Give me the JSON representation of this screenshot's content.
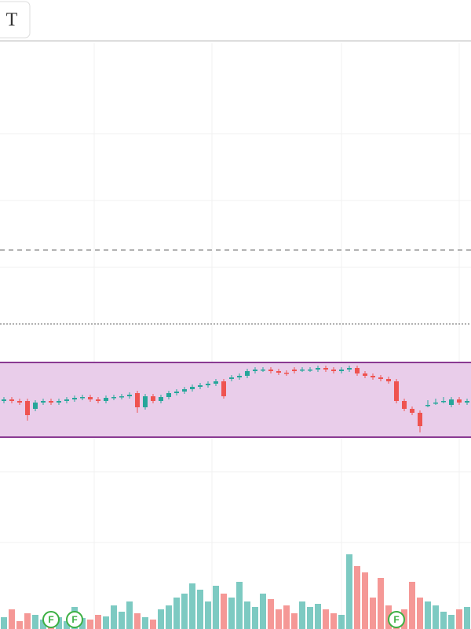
{
  "toolbar": {
    "icon": "T"
  },
  "chart_data": {
    "type": "candlestick",
    "categories": [
      null,
      null,
      null,
      null,
      null,
      null,
      null,
      null,
      null,
      null,
      null,
      null,
      null,
      null,
      null,
      null,
      null,
      null,
      null,
      null,
      null,
      null,
      null,
      null,
      null,
      null,
      null,
      null,
      null,
      null,
      null,
      null,
      null,
      null,
      null,
      null,
      null,
      null,
      null,
      null,
      null,
      null,
      null,
      null,
      null,
      null,
      null,
      null,
      null,
      null,
      null,
      null,
      null,
      null,
      null,
      null,
      null,
      null,
      null,
      null
    ],
    "open": [
      290,
      292,
      290,
      290,
      280,
      288,
      290,
      288,
      290,
      292,
      294,
      295,
      292,
      290,
      294,
      295,
      296,
      300,
      282,
      296,
      290,
      295,
      300,
      302,
      305,
      308,
      310,
      312,
      315,
      318,
      320,
      322,
      328,
      330,
      330,
      328,
      326,
      330,
      330,
      330,
      330,
      332,
      330,
      328,
      330,
      332,
      325,
      322,
      320,
      318,
      315,
      290,
      280,
      275,
      285,
      288,
      290,
      285,
      292,
      288
    ],
    "high": [
      295,
      295,
      293,
      293,
      291,
      293,
      293,
      293,
      295,
      297,
      298,
      298,
      295,
      297,
      298,
      299,
      301,
      303,
      299,
      299,
      298,
      303,
      305,
      308,
      311,
      313,
      315,
      318,
      318,
      323,
      325,
      331,
      333,
      333,
      333,
      331,
      329,
      333,
      333,
      333,
      335,
      335,
      333,
      333,
      335,
      335,
      328,
      325,
      323,
      321,
      318,
      293,
      283,
      278,
      291,
      293,
      295,
      295,
      295,
      293
    ],
    "low": [
      287,
      287,
      285,
      265,
      277,
      285,
      285,
      285,
      287,
      289,
      291,
      289,
      287,
      287,
      291,
      292,
      293,
      275,
      279,
      287,
      287,
      292,
      297,
      299,
      302,
      305,
      307,
      309,
      293,
      315,
      317,
      319,
      325,
      327,
      325,
      323,
      322,
      325,
      327,
      327,
      327,
      327,
      325,
      325,
      327,
      322,
      319,
      317,
      315,
      312,
      287,
      277,
      272,
      250,
      282,
      285,
      287,
      282,
      285,
      285
    ],
    "close": [
      292,
      290,
      288,
      272,
      288,
      290,
      288,
      290,
      292,
      294,
      295,
      292,
      290,
      294,
      295,
      296,
      298,
      282,
      296,
      290,
      295,
      300,
      302,
      305,
      308,
      310,
      312,
      315,
      296,
      320,
      322,
      328,
      330,
      330,
      328,
      326,
      325,
      328,
      330,
      330,
      332,
      330,
      328,
      330,
      332,
      325,
      322,
      320,
      318,
      315,
      290,
      280,
      275,
      258,
      285,
      288,
      290,
      292,
      288,
      290
    ],
    "volume": [
      15,
      25,
      10,
      20,
      18,
      12,
      22,
      15,
      10,
      28,
      14,
      12,
      18,
      16,
      30,
      22,
      35,
      20,
      15,
      12,
      25,
      30,
      40,
      45,
      58,
      50,
      35,
      55,
      45,
      40,
      60,
      35,
      28,
      45,
      38,
      25,
      30,
      20,
      35,
      28,
      32,
      25,
      20,
      18,
      95,
      80,
      72,
      40,
      65,
      30,
      20,
      25,
      60,
      40,
      35,
      30,
      22,
      18,
      25,
      28
    ],
    "ylim": [
      0,
      800
    ],
    "volume_lim": [
      0,
      800
    ],
    "up_color": "#26a69a",
    "down_color": "#ef5350",
    "levels": [
      {
        "value": 482,
        "style": "dashed"
      },
      {
        "value": 388,
        "style": "dotted"
      }
    ],
    "range_box": {
      "low": 244,
      "high": 339,
      "fill": "#e9cdea",
      "stroke": "#8a3a92"
    },
    "markers": [
      {
        "index": 6,
        "label": "F"
      },
      {
        "index": 9,
        "label": "F"
      },
      {
        "index": 50,
        "label": "F"
      }
    ]
  }
}
